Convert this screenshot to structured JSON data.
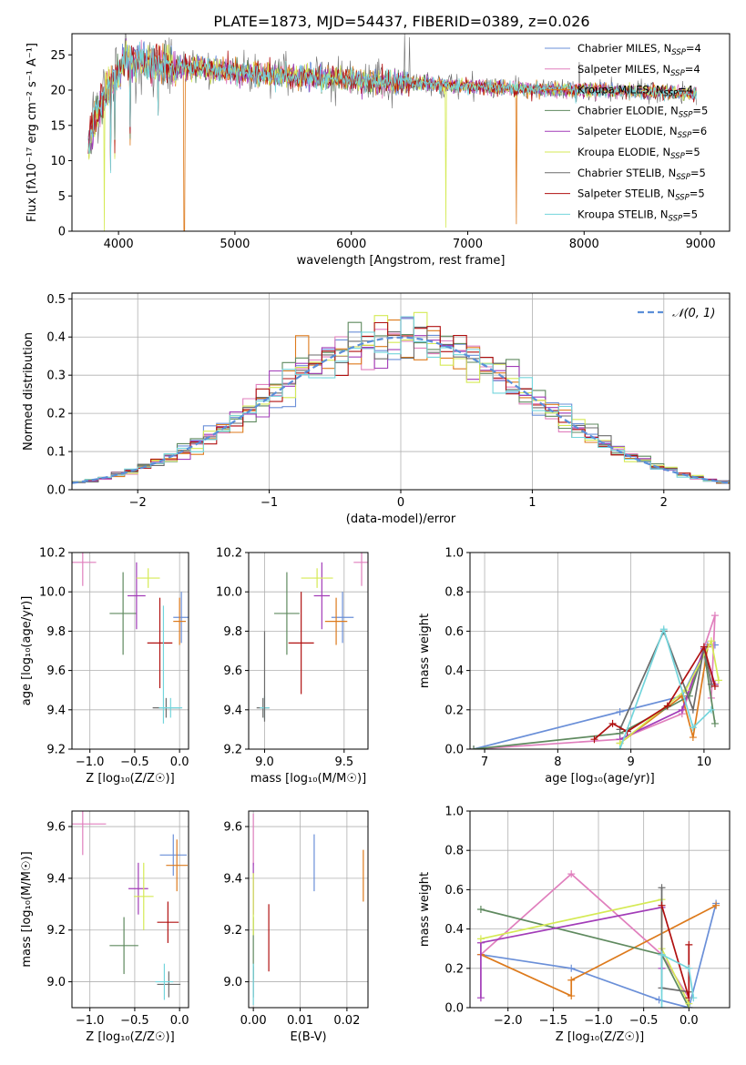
{
  "figure": {
    "title": "PLATE=1873, MJD=54437, FIBERID=0389, z=0.026"
  },
  "colors": [
    "#6a8fd8",
    "#e07fbd",
    "#dd7a1c",
    "#5f8a5f",
    "#a23cb8",
    "#d5ea55",
    "#6b6b6b",
    "#b01010",
    "#73d5dc"
  ],
  "chart_data": [
    {
      "id": "spectrum",
      "type": "line",
      "title": "PLATE=1873, MJD=54437, FIBERID=0389, z=0.026",
      "xlabel": "wavelength [Angstrom, rest frame]",
      "ylabel": "Flux [fλ10⁻¹⁷ erg cm⁻² s⁻¹ A⁻¹]",
      "xlim": [
        3600,
        9250
      ],
      "ylim": [
        0,
        28
      ],
      "xticks": [
        4000,
        5000,
        6000,
        7000,
        8000,
        9000
      ],
      "yticks": [
        0,
        5,
        10,
        15,
        20,
        25
      ],
      "grid": false,
      "legend_position": "top-right",
      "continuum": [
        [
          3740,
          12
        ],
        [
          3800,
          16
        ],
        [
          3900,
          20
        ],
        [
          3980,
          22
        ],
        [
          4050,
          24.5
        ],
        [
          4200,
          24
        ],
        [
          4400,
          23.5
        ],
        [
          4700,
          23
        ],
        [
          5000,
          22.5
        ],
        [
          5500,
          22
        ],
        [
          6000,
          21.5
        ],
        [
          6500,
          21
        ],
        [
          7000,
          20.5
        ],
        [
          7500,
          20.2
        ],
        [
          8000,
          20
        ],
        [
          8500,
          19.8
        ],
        [
          8970,
          19.5
        ]
      ],
      "dips": [
        {
          "x": 3880,
          "y": 0,
          "series": 5
        },
        {
          "x": 4565,
          "y": 0,
          "series": 2
        },
        {
          "x": 6810,
          "y": 0.5,
          "series": 5
        },
        {
          "x": 7420,
          "y": 1,
          "series": 2
        },
        {
          "x": 4102,
          "y": 12
        },
        {
          "x": 4340,
          "y": 14
        },
        {
          "x": 3934,
          "y": 8
        },
        {
          "x": 3968,
          "y": 10
        }
      ],
      "spikes": [
        {
          "x": 6460,
          "y": 28
        },
        {
          "x": 6500,
          "y": 27.5
        },
        {
          "x": 7960,
          "y": 24
        }
      ],
      "legend": [
        {
          "label": "Chabrier MILES, N",
          "sub": "SSP",
          "tail": "=4"
        },
        {
          "label": "Salpeter MILES, N",
          "sub": "SSP",
          "tail": "=4"
        },
        {
          "label": "Kroupa MILES, N",
          "sub": "SSP",
          "tail": "=4"
        },
        {
          "label": "Chabrier ELODIE, N",
          "sub": "SSP",
          "tail": "=5"
        },
        {
          "label": "Salpeter ELODIE, N",
          "sub": "SSP",
          "tail": "=6"
        },
        {
          "label": "Kroupa ELODIE, N",
          "sub": "SSP",
          "tail": "=5"
        },
        {
          "label": "Chabrier STELIB, N",
          "sub": "SSP",
          "tail": "=5"
        },
        {
          "label": "Salpeter STELIB, N",
          "sub": "SSP",
          "tail": "=5"
        },
        {
          "label": "Kroupa STELIB, N",
          "sub": "SSP",
          "tail": "=5"
        }
      ]
    },
    {
      "id": "residuals",
      "type": "line",
      "xlabel": "(data-model)/error",
      "ylabel": "Normed distribution",
      "xlim": [
        -2.5,
        2.5
      ],
      "ylim": [
        0,
        0.515
      ],
      "xticks": [
        -2,
        -1,
        0,
        1,
        2
      ],
      "yticks": [
        0.0,
        0.1,
        0.2,
        0.3,
        0.4,
        0.5
      ],
      "grid": true,
      "bin_width": 0.1,
      "legend": [
        {
          "label": "𝒩(0, 1)"
        }
      ],
      "legend_position": "top-right"
    },
    {
      "id": "age_vs_Z",
      "type": "scatter",
      "xlabel": "Z [log₁₀(Z/Z☉)]",
      "ylabel": "age  [log₁₀(age/yr)]",
      "xlim": [
        -1.2,
        0.1
      ],
      "ylim": [
        9.2,
        10.2
      ],
      "xticks": [
        -1.0,
        -0.5,
        0.0
      ],
      "yticks": [
        9.2,
        9.4,
        9.6,
        9.8,
        10.0,
        10.2
      ],
      "grid": true,
      "points": [
        {
          "s": 0,
          "x": 0.02,
          "y": 9.87,
          "xerr": 0.09,
          "yerr": 0.13
        },
        {
          "s": 1,
          "x": -1.08,
          "y": 10.15,
          "xerr": 0.15,
          "yerr": 0.12
        },
        {
          "s": 2,
          "x": 0.0,
          "y": 9.85,
          "xerr": 0.07,
          "yerr": 0.12
        },
        {
          "s": 3,
          "x": -0.63,
          "y": 9.89,
          "xerr": 0.15,
          "yerr": 0.21
        },
        {
          "s": 4,
          "x": -0.48,
          "y": 9.98,
          "xerr": 0.1,
          "yerr": 0.17
        },
        {
          "s": 5,
          "x": -0.35,
          "y": 10.07,
          "xerr": 0.13,
          "yerr": 0.05
        },
        {
          "s": 6,
          "x": -0.15,
          "y": 9.41,
          "xerr": 0.15,
          "yerr": 0.05
        },
        {
          "s": 7,
          "x": -0.22,
          "y": 9.74,
          "xerr": 0.14,
          "yerr": 0.23
        },
        {
          "s": 8,
          "x": -0.1,
          "y": 9.41,
          "xerr": 0.13,
          "yerr": 0.05
        },
        {
          "s": 8,
          "x": -0.18,
          "y": 9.63,
          "xerr": 0.0,
          "yerr": 0.3
        }
      ]
    },
    {
      "id": "age_vs_mass",
      "type": "scatter",
      "xlabel": "mass [log₁₀(M/M☉)]",
      "ylabel": "",
      "xlim": [
        8.9,
        9.65
      ],
      "ylim": [
        9.2,
        10.2
      ],
      "xticks": [
        9.0,
        9.5
      ],
      "yticks": [
        9.2,
        9.4,
        9.6,
        9.8,
        10.0,
        10.2
      ],
      "grid": true,
      "points": [
        {
          "s": 0,
          "x": 9.49,
          "y": 9.87,
          "xerr": 0.07,
          "yerr": 0.13
        },
        {
          "s": 1,
          "x": 9.61,
          "y": 10.15,
          "xerr": 0.05,
          "yerr": 0.12
        },
        {
          "s": 2,
          "x": 9.45,
          "y": 9.85,
          "xerr": 0.07,
          "yerr": 0.12
        },
        {
          "s": 3,
          "x": 9.14,
          "y": 9.89,
          "xerr": 0.08,
          "yerr": 0.21
        },
        {
          "s": 4,
          "x": 9.36,
          "y": 9.98,
          "xerr": 0.05,
          "yerr": 0.17
        },
        {
          "s": 5,
          "x": 9.33,
          "y": 10.07,
          "xerr": 0.1,
          "yerr": 0.05
        },
        {
          "s": 6,
          "x": 8.99,
          "y": 9.41,
          "xerr": 0.04,
          "yerr": 0.05
        },
        {
          "s": 7,
          "x": 9.23,
          "y": 9.74,
          "xerr": 0.08,
          "yerr": 0.26
        },
        {
          "s": 8,
          "x": 9.0,
          "y": 9.41,
          "xerr": 0.03,
          "yerr": 0.06
        },
        {
          "s": 6,
          "x": 9.0,
          "y": 9.57,
          "xerr": 0.0,
          "yerr": 0.23
        }
      ]
    },
    {
      "id": "mass_weight_vs_age",
      "type": "line",
      "xlabel": "age  [log₁₀(age/yr)]",
      "ylabel": "mass weight",
      "xlim": [
        6.8,
        10.35
      ],
      "ylim": [
        0.0,
        1.0
      ],
      "xticks": [
        7,
        8,
        9,
        10
      ],
      "yticks": [
        0.0,
        0.2,
        0.4,
        0.6,
        0.8,
        1.0
      ],
      "grid": true,
      "series": [
        {
          "s": 0,
          "points": [
            [
              6.85,
              0.0
            ],
            [
              8.85,
              0.19
            ],
            [
              9.7,
              0.27
            ],
            [
              10.05,
              0.53
            ],
            [
              10.15,
              0.53
            ]
          ]
        },
        {
          "s": 1,
          "points": [
            [
              6.85,
              0.0
            ],
            [
              8.85,
              0.05
            ],
            [
              9.7,
              0.18
            ],
            [
              10.15,
              0.68
            ],
            [
              10.1,
              0.26
            ]
          ]
        },
        {
          "s": 2,
          "points": [
            [
              8.85,
              0.03
            ],
            [
              9.7,
              0.27
            ],
            [
              9.85,
              0.06
            ],
            [
              10.05,
              0.52
            ]
          ]
        },
        {
          "s": 3,
          "points": [
            [
              6.85,
              0.0
            ],
            [
              8.85,
              0.08
            ],
            [
              9.8,
              0.27
            ],
            [
              10.0,
              0.5
            ],
            [
              10.15,
              0.13
            ]
          ]
        },
        {
          "s": 4,
          "points": [
            [
              8.85,
              0.05
            ],
            [
              9.7,
              0.2
            ],
            [
              10.0,
              0.51
            ],
            [
              10.15,
              0.33
            ]
          ]
        },
        {
          "s": 5,
          "points": [
            [
              8.85,
              0.03
            ],
            [
              9.75,
              0.3
            ],
            [
              10.1,
              0.55
            ],
            [
              10.2,
              0.35
            ]
          ]
        },
        {
          "s": 6,
          "points": [
            [
              8.85,
              0.1
            ],
            [
              9.45,
              0.6
            ],
            [
              9.85,
              0.2
            ],
            [
              10.0,
              0.52
            ],
            [
              10.1,
              0.33
            ]
          ]
        },
        {
          "s": 7,
          "points": [
            [
              8.5,
              0.05
            ],
            [
              8.75,
              0.13
            ],
            [
              8.95,
              0.09
            ],
            [
              9.5,
              0.22
            ],
            [
              10.0,
              0.52
            ],
            [
              10.15,
              0.32
            ]
          ]
        },
        {
          "s": 8,
          "points": [
            [
              8.85,
              0.0
            ],
            [
              9.45,
              0.61
            ],
            [
              9.85,
              0.11
            ],
            [
              10.1,
              0.2
            ]
          ]
        }
      ]
    },
    {
      "id": "mass_vs_Z",
      "type": "scatter",
      "xlabel": "Z [log₁₀(Z/Z☉)]",
      "ylabel": "mass [log₁₀(M/M☉)]",
      "xlim": [
        -1.2,
        0.1
      ],
      "ylim": [
        8.9,
        9.66
      ],
      "xticks": [
        -1.0,
        -0.5,
        0.0
      ],
      "yticks": [
        9.0,
        9.2,
        9.4,
        9.6
      ],
      "grid": true,
      "points": [
        {
          "s": 0,
          "x": -0.07,
          "y": 9.49,
          "xerr": 0.15,
          "yerr": 0.08
        },
        {
          "s": 1,
          "x": -1.08,
          "y": 9.61,
          "xerr": 0.26,
          "yerr": 0.12
        },
        {
          "s": 2,
          "x": -0.03,
          "y": 9.45,
          "xerr": 0.12,
          "yerr": 0.1
        },
        {
          "s": 3,
          "x": -0.62,
          "y": 9.14,
          "xerr": 0.16,
          "yerr": 0.11
        },
        {
          "s": 4,
          "x": -0.46,
          "y": 9.36,
          "xerr": 0.11,
          "yerr": 0.1
        },
        {
          "s": 5,
          "x": -0.4,
          "y": 9.33,
          "xerr": 0.11,
          "yerr": 0.13
        },
        {
          "s": 6,
          "x": -0.12,
          "y": 8.99,
          "xerr": 0.13,
          "yerr": 0.05
        },
        {
          "s": 7,
          "x": -0.13,
          "y": 9.23,
          "xerr": 0.12,
          "yerr": 0.08
        },
        {
          "s": 8,
          "x": -0.17,
          "y": 9.0,
          "xerr": 0.1,
          "yerr": 0.07
        }
      ]
    },
    {
      "id": "mass_vs_EBV",
      "type": "scatter",
      "xlabel": "E(B-V)",
      "ylabel": "",
      "xlim": [
        -0.001,
        0.0245
      ],
      "ylim": [
        8.9,
        9.66
      ],
      "xticks": [
        0.0,
        0.01,
        0.02
      ],
      "yticks": [
        9.0,
        9.2,
        9.4,
        9.6
      ],
      "grid": true,
      "points": [
        {
          "s": 0,
          "x": 0.013,
          "y": 9.46,
          "xerr": 0.0,
          "yerr": 0.11
        },
        {
          "s": 1,
          "x": 0.0,
          "y": 9.55,
          "xerr": 0.0,
          "yerr": 0.1
        },
        {
          "s": 2,
          "x": 0.0235,
          "y": 9.41,
          "xerr": 0.0,
          "yerr": 0.1
        },
        {
          "s": 3,
          "x": 0.0,
          "y": 9.13,
          "xerr": 0.0,
          "yerr": 0.12
        },
        {
          "s": 4,
          "x": 0.0,
          "y": 9.36,
          "xerr": 0.0,
          "yerr": 0.1
        },
        {
          "s": 5,
          "x": 0.0,
          "y": 9.3,
          "xerr": 0.0,
          "yerr": 0.12
        },
        {
          "s": 6,
          "x": 0.0,
          "y": 9.0,
          "xerr": 0.0,
          "yerr": 0.06
        },
        {
          "s": 7,
          "x": 0.0033,
          "y": 9.17,
          "xerr": 0.0,
          "yerr": 0.13
        },
        {
          "s": 8,
          "x": 0.0,
          "y": 8.99,
          "xerr": 0.0,
          "yerr": 0.08
        }
      ]
    },
    {
      "id": "mass_weight_vs_Z",
      "type": "line",
      "xlabel": "Z [log₁₀(Z/Z☉)]",
      "ylabel": "mass weight",
      "xlim": [
        -2.42,
        0.45
      ],
      "ylim": [
        0.0,
        1.0
      ],
      "xticks": [
        -2.0,
        -1.5,
        -1.0,
        -0.5,
        0.0
      ],
      "yticks": [
        0.0,
        0.2,
        0.4,
        0.6,
        0.8,
        1.0
      ],
      "grid": true,
      "series": [
        {
          "s": 0,
          "points": [
            [
              -2.3,
              0.27
            ],
            [
              -1.3,
              0.2
            ],
            [
              -0.33,
              0.04
            ],
            [
              0.0,
              0.0
            ],
            [
              0.3,
              0.53
            ]
          ]
        },
        {
          "s": 1,
          "points": [
            [
              -2.3,
              0.27
            ],
            [
              -1.3,
              0.68
            ],
            [
              -0.3,
              0.27
            ],
            [
              0.0,
              0.05
            ]
          ]
        },
        {
          "s": 2,
          "points": [
            [
              -2.3,
              0.27
            ],
            [
              -1.3,
              0.06
            ],
            [
              -1.3,
              0.14
            ],
            [
              0.3,
              0.52
            ]
          ]
        },
        {
          "s": 3,
          "points": [
            [
              -2.3,
              0.5
            ],
            [
              -0.3,
              0.27
            ],
            [
              0.0,
              0.0
            ]
          ]
        },
        {
          "s": 4,
          "points": [
            [
              -2.3,
              0.05
            ],
            [
              -2.3,
              0.33
            ],
            [
              -0.3,
              0.51
            ],
            [
              -0.3,
              0.2
            ]
          ]
        },
        {
          "s": 5,
          "points": [
            [
              -2.3,
              0.35
            ],
            [
              -0.3,
              0.55
            ],
            [
              -0.3,
              0.3
            ],
            [
              0.0,
              0.02
            ]
          ]
        },
        {
          "s": 6,
          "points": [
            [
              -0.3,
              0.61
            ],
            [
              -0.3,
              0.1
            ],
            [
              0.0,
              0.08
            ]
          ]
        },
        {
          "s": 7,
          "points": [
            [
              -0.3,
              0.52
            ],
            [
              0.0,
              0.05
            ],
            [
              0.0,
              0.32
            ]
          ]
        },
        {
          "s": 8,
          "points": [
            [
              -0.3,
              0.0
            ],
            [
              -0.3,
              0.27
            ],
            [
              0.0,
              0.2
            ],
            [
              0.05,
              0.05
            ]
          ]
        }
      ]
    }
  ]
}
